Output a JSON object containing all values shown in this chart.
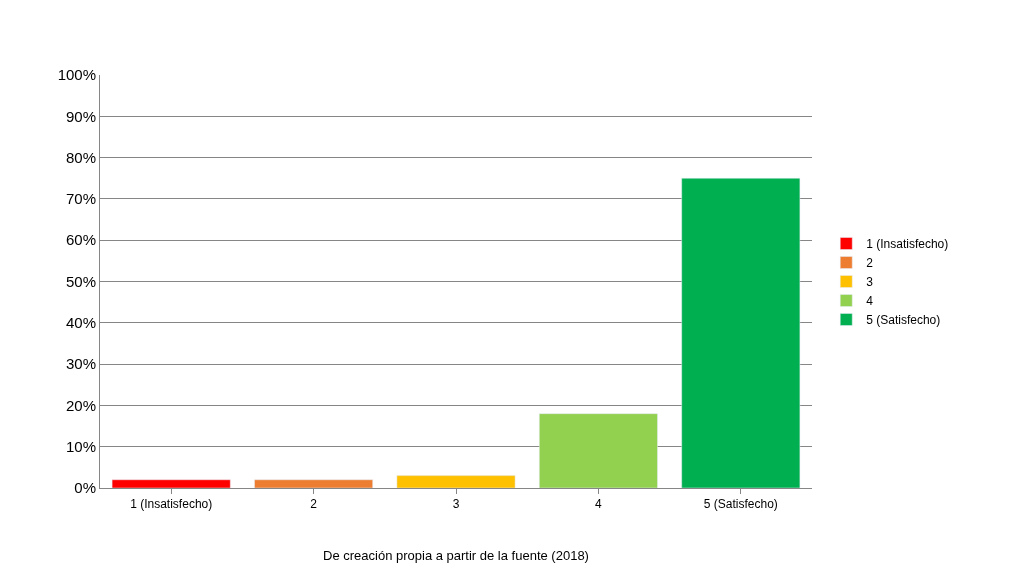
{
  "chart_data": {
    "type": "bar",
    "categories": [
      "1 (Insatisfecho)",
      "2",
      "3",
      "4",
      "5 (Satisfecho)"
    ],
    "series": [
      {
        "name": "1 (Insatisfecho)",
        "color": "#ff0000",
        "values": [
          2,
          null,
          null,
          null,
          null
        ]
      },
      {
        "name": "2",
        "color": "#ed7d31",
        "values": [
          null,
          2,
          null,
          null,
          null
        ]
      },
      {
        "name": "3",
        "color": "#ffc000",
        "values": [
          null,
          null,
          3,
          null,
          null
        ]
      },
      {
        "name": "4",
        "color": "#92d050",
        "values": [
          null,
          null,
          null,
          18,
          null
        ]
      },
      {
        "name": "5 (Satisfecho)",
        "color": "#00b050",
        "values": [
          null,
          null,
          null,
          null,
          75
        ]
      }
    ],
    "ylim": [
      0,
      100
    ],
    "yticks": [
      {
        "value": 0,
        "label": "0%"
      },
      {
        "value": 10,
        "label": "10%"
      },
      {
        "value": 20,
        "label": "20%"
      },
      {
        "value": 30,
        "label": "30%"
      },
      {
        "value": 40,
        "label": "40%"
      },
      {
        "value": 50,
        "label": "50%"
      },
      {
        "value": 60,
        "label": "60%"
      },
      {
        "value": 70,
        "label": "70%"
      },
      {
        "value": 80,
        "label": "80%"
      },
      {
        "value": 90,
        "label": "90%"
      },
      {
        "value": 100,
        "label": "100%"
      }
    ],
    "grid": "y",
    "legend": "right",
    "annotations": [
      "De creación propia a partir de la fuente (2018)"
    ]
  }
}
